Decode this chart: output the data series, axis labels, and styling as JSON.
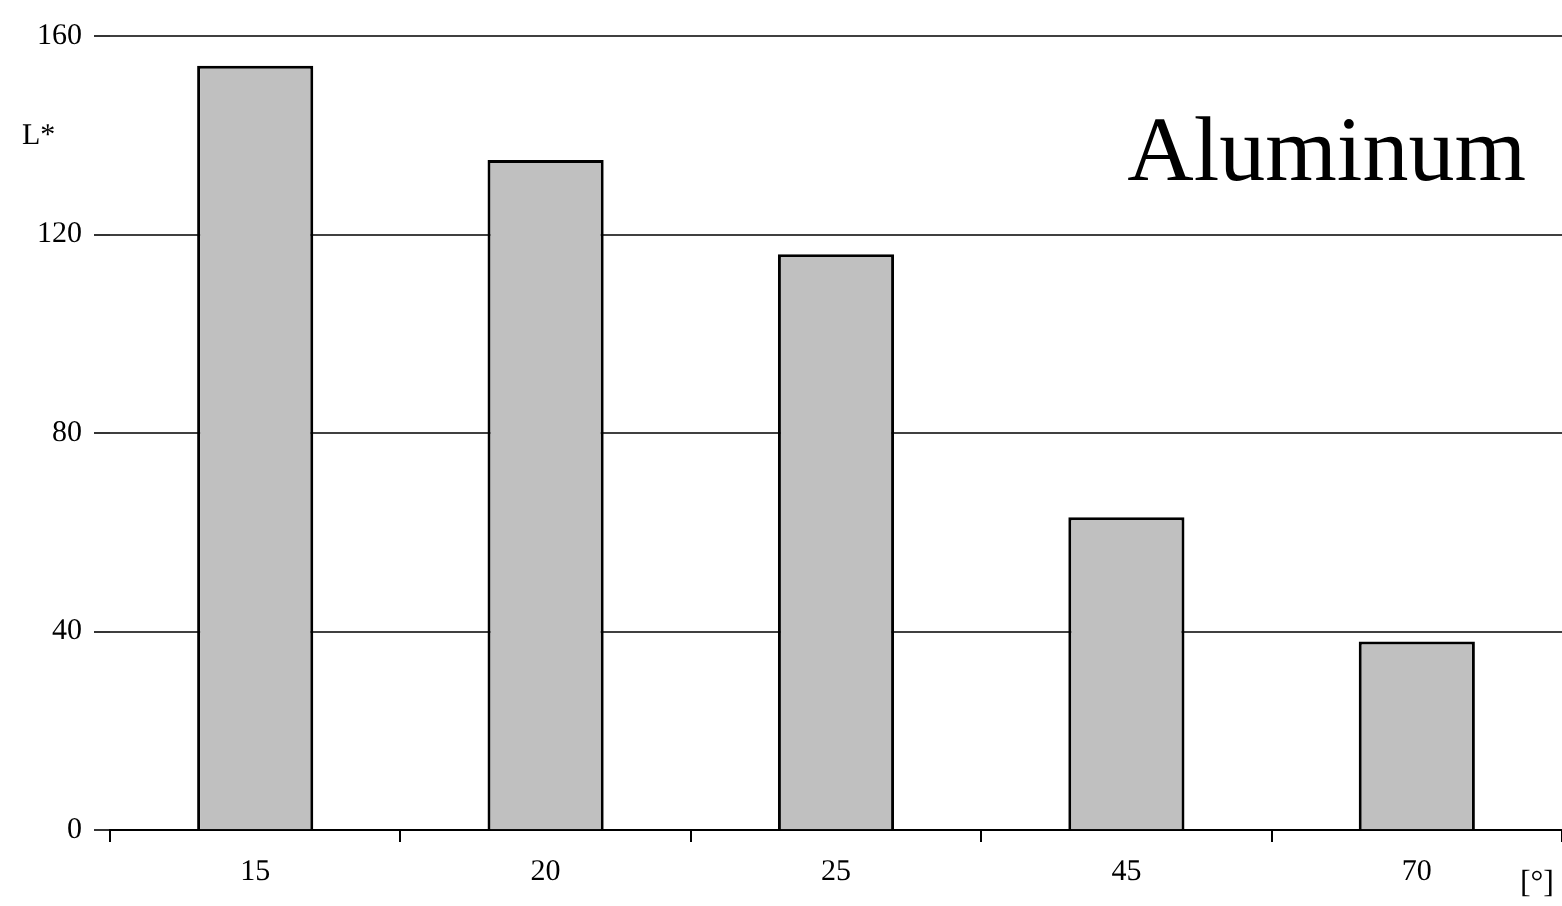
{
  "chart_data": {
    "type": "bar",
    "title": "Aluminum",
    "xlabel": "[°]",
    "ylabel": "L*",
    "categories": [
      "15",
      "20",
      "25",
      "45",
      "70"
    ],
    "values": [
      154,
      135,
      116,
      63,
      38
    ],
    "color": "#c0c0c0",
    "ylim": [
      0,
      160
    ],
    "yticks": [
      0,
      40,
      80,
      120,
      160
    ],
    "grid": "y",
    "legend": false
  }
}
